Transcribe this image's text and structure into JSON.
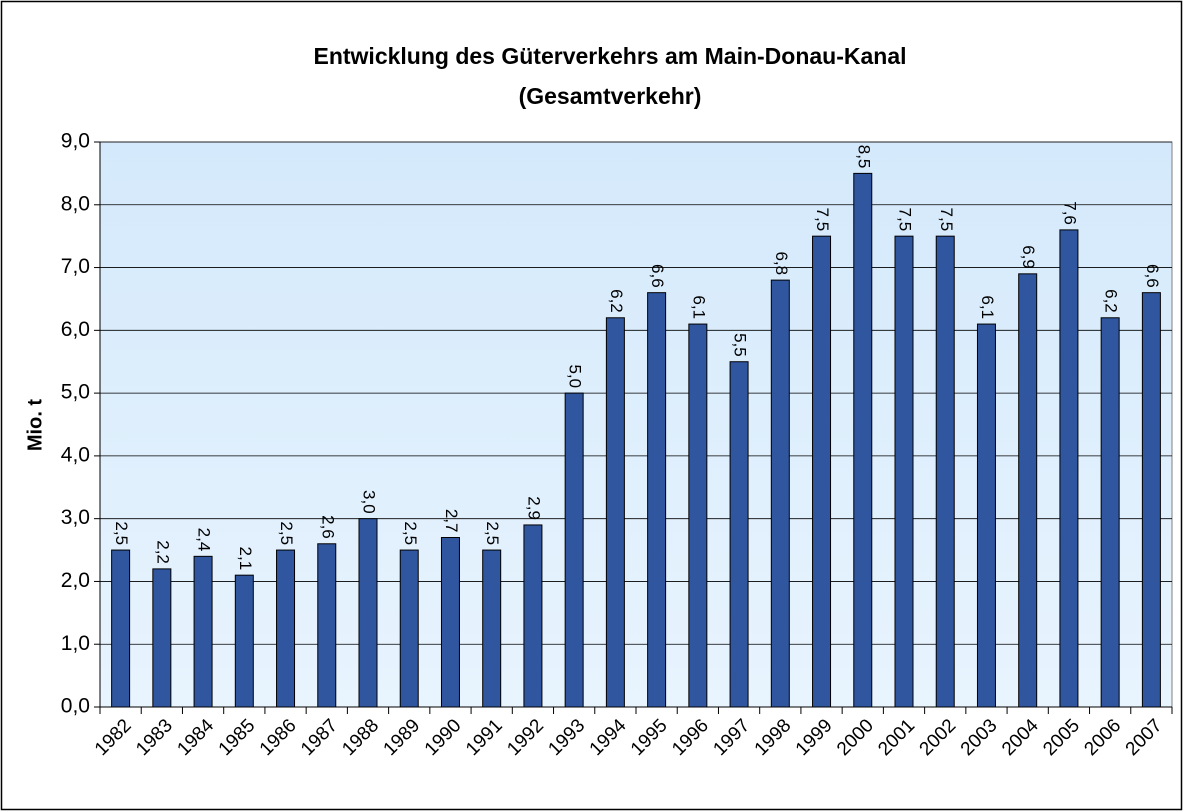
{
  "chart_data": {
    "type": "bar",
    "title": "Entwicklung des Güterverkehrs am Main-Donau-Kanal",
    "subtitle": "(Gesamtverkehr)",
    "y_label": "Mio. t",
    "categories": [
      "1982",
      "1983",
      "1984",
      "1985",
      "1986",
      "1987",
      "1988",
      "1989",
      "1990",
      "1991",
      "1992",
      "1993",
      "1994",
      "1995",
      "1996",
      "1997",
      "1998",
      "1999",
      "2000",
      "2001",
      "2002",
      "2003",
      "2004",
      "2005",
      "2006",
      "2007"
    ],
    "values": [
      2.5,
      2.2,
      2.4,
      2.1,
      2.5,
      2.6,
      3.0,
      2.5,
      2.7,
      2.5,
      2.9,
      5.0,
      6.2,
      6.6,
      6.1,
      5.5,
      6.8,
      7.5,
      8.5,
      7.5,
      7.5,
      6.1,
      6.9,
      7.6,
      6.2,
      6.6
    ],
    "value_labels": [
      "2,5",
      "2,2",
      "2,4",
      "2,1",
      "2,5",
      "2,6",
      "3,0",
      "2,5",
      "2,7",
      "2,5",
      "2,9",
      "5,0",
      "6,2",
      "6,6",
      "6,1",
      "5,5",
      "6,8",
      "7,5",
      "8,5",
      "7,5",
      "7,5",
      "6,1",
      "6,9",
      "7,6",
      "6,2",
      "6,6"
    ],
    "color": "#2f569f",
    "ylim": [
      0,
      9
    ],
    "yticks": [
      {
        "value": 0,
        "label": "0,0"
      },
      {
        "value": 1,
        "label": "1,0"
      },
      {
        "value": 2,
        "label": "2,0"
      },
      {
        "value": 3,
        "label": "3,0"
      },
      {
        "value": 4,
        "label": "4,0"
      },
      {
        "value": 5,
        "label": "5,0"
      },
      {
        "value": 6,
        "label": "6,0"
      },
      {
        "value": 7,
        "label": "7,0"
      },
      {
        "value": 8,
        "label": "8,0"
      },
      {
        "value": 9,
        "label": "9,0"
      }
    ],
    "grid": true
  }
}
